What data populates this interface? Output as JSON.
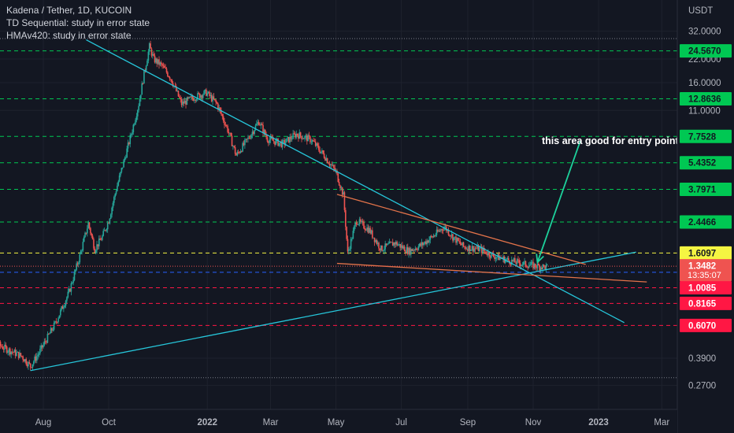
{
  "header": {
    "symbol_title": "Kadena / Tether, 1D, KUCOIN",
    "study_1": "TD Sequential: study in error state",
    "study_2": "HMAv420: study in error state"
  },
  "chart_data": {
    "type": "candlestick",
    "currency_label": "USDT",
    "scale": "log",
    "y_ticks": [
      "32.0000",
      "22.0000",
      "16.0000",
      "11.0000",
      "0.3900",
      "0.2700"
    ],
    "x_ticks": [
      "Aug",
      "Oct",
      "2022",
      "Mar",
      "May",
      "Jul",
      "Sep",
      "Nov",
      "2023",
      "Mar"
    ],
    "horizontal_levels": [
      {
        "label": "24.5670",
        "value": 24.567,
        "color": "#00c853",
        "style": "dashed"
      },
      {
        "label": "12.8636",
        "value": 12.8636,
        "color": "#00c853",
        "style": "dashed"
      },
      {
        "label": "7.7528",
        "value": 7.7528,
        "color": "#00c853",
        "style": "dashed"
      },
      {
        "label": "5.4352",
        "value": 5.4352,
        "color": "#00c853",
        "style": "dashed"
      },
      {
        "label": "3.7971",
        "value": 3.7971,
        "color": "#00c853",
        "style": "dashed"
      },
      {
        "label": "2.4466",
        "value": 2.4466,
        "color": "#00c853",
        "style": "dashed"
      },
      {
        "label": "1.6097",
        "value": 1.6097,
        "color": "#f5f542",
        "style": "dashed"
      },
      {
        "label": "1.2422",
        "value": 1.2422,
        "color": "#2962ff",
        "style": "dashed"
      },
      {
        "label": "1.0085",
        "value": 1.0085,
        "color": "#ff1744",
        "style": "dashed"
      },
      {
        "label": "0.8165",
        "value": 0.8165,
        "color": "#ff1744",
        "style": "dashed"
      },
      {
        "label": "0.6070",
        "value": 0.607,
        "color": "#ff1744",
        "style": "dashed"
      }
    ],
    "current_price": {
      "label": "1.3482",
      "countdown": "13:35:07",
      "value": 1.3482,
      "color": "#ef5350"
    },
    "annotation": "this area good for entry point",
    "trendlines": [
      {
        "name": "down-trend",
        "color": "#26c6da",
        "from": [
          "2021-09-10",
          28.5
        ],
        "to": [
          "2023-01-25",
          0.63
        ]
      },
      {
        "name": "up-trend",
        "color": "#26c6da",
        "from": [
          "2021-07-20",
          0.33
        ],
        "to": [
          "2023-02-05",
          1.63
        ]
      },
      {
        "name": "wedge-top",
        "color": "#e3734a",
        "from": [
          "2022-05-02",
          3.55
        ],
        "to": [
          "2022-12-20",
          1.38
        ]
      },
      {
        "name": "wedge-bottom",
        "color": "#e3734a",
        "from": [
          "2022-05-02",
          1.4
        ],
        "to": [
          "2023-02-15",
          1.09
        ]
      }
    ],
    "arrow": {
      "color": "#1dd19c",
      "from": [
        "2022-12-15",
        7.3
      ],
      "to": [
        "2022-11-05",
        1.42
      ]
    },
    "price_path": [
      [
        "2021-06-01",
        0.55
      ],
      [
        "2021-06-25",
        0.45
      ],
      [
        "2021-07-12",
        0.4
      ],
      [
        "2021-07-20",
        0.35
      ],
      [
        "2021-07-28",
        0.42
      ],
      [
        "2021-08-12",
        0.62
      ],
      [
        "2021-08-25",
        0.95
      ],
      [
        "2021-09-04",
        1.55
      ],
      [
        "2021-09-12",
        2.4
      ],
      [
        "2021-09-18",
        1.7
      ],
      [
        "2021-09-25",
        2.0
      ],
      [
        "2021-10-01",
        2.5
      ],
      [
        "2021-10-08",
        3.8
      ],
      [
        "2021-10-15",
        5.5
      ],
      [
        "2021-10-22",
        8.0
      ],
      [
        "2021-10-29",
        12.0
      ],
      [
        "2021-11-03",
        18.0
      ],
      [
        "2021-11-08",
        26.0
      ],
      [
        "2021-11-12",
        22.0
      ],
      [
        "2021-11-20",
        20.0
      ],
      [
        "2021-11-28",
        17.0
      ],
      [
        "2021-12-08",
        12.0
      ],
      [
        "2021-12-18",
        13.0
      ],
      [
        "2021-12-31",
        14.0
      ],
      [
        "2022-01-10",
        12.0
      ],
      [
        "2022-01-20",
        8.5
      ],
      [
        "2022-01-28",
        6.0
      ],
      [
        "2022-02-08",
        7.5
      ],
      [
        "2022-02-18",
        9.5
      ],
      [
        "2022-02-26",
        7.5
      ],
      [
        "2022-03-12",
        7.0
      ],
      [
        "2022-03-25",
        8.0
      ],
      [
        "2022-04-08",
        7.4
      ],
      [
        "2022-04-20",
        6.0
      ],
      [
        "2022-05-01",
        4.8
      ],
      [
        "2022-05-08",
        3.5
      ],
      [
        "2022-05-12",
        1.6
      ],
      [
        "2022-05-20",
        2.5
      ],
      [
        "2022-06-01",
        2.2
      ],
      [
        "2022-06-12",
        1.7
      ],
      [
        "2022-06-25",
        1.85
      ],
      [
        "2022-07-08",
        1.65
      ],
      [
        "2022-07-20",
        1.8
      ],
      [
        "2022-08-01",
        2.05
      ],
      [
        "2022-08-10",
        2.3
      ],
      [
        "2022-08-18",
        2.0
      ],
      [
        "2022-08-28",
        1.75
      ],
      [
        "2022-09-12",
        1.7
      ],
      [
        "2022-09-25",
        1.55
      ],
      [
        "2022-10-10",
        1.45
      ],
      [
        "2022-10-25",
        1.38
      ],
      [
        "2022-11-05",
        1.35
      ],
      [
        "2022-11-14",
        1.33
      ]
    ]
  }
}
